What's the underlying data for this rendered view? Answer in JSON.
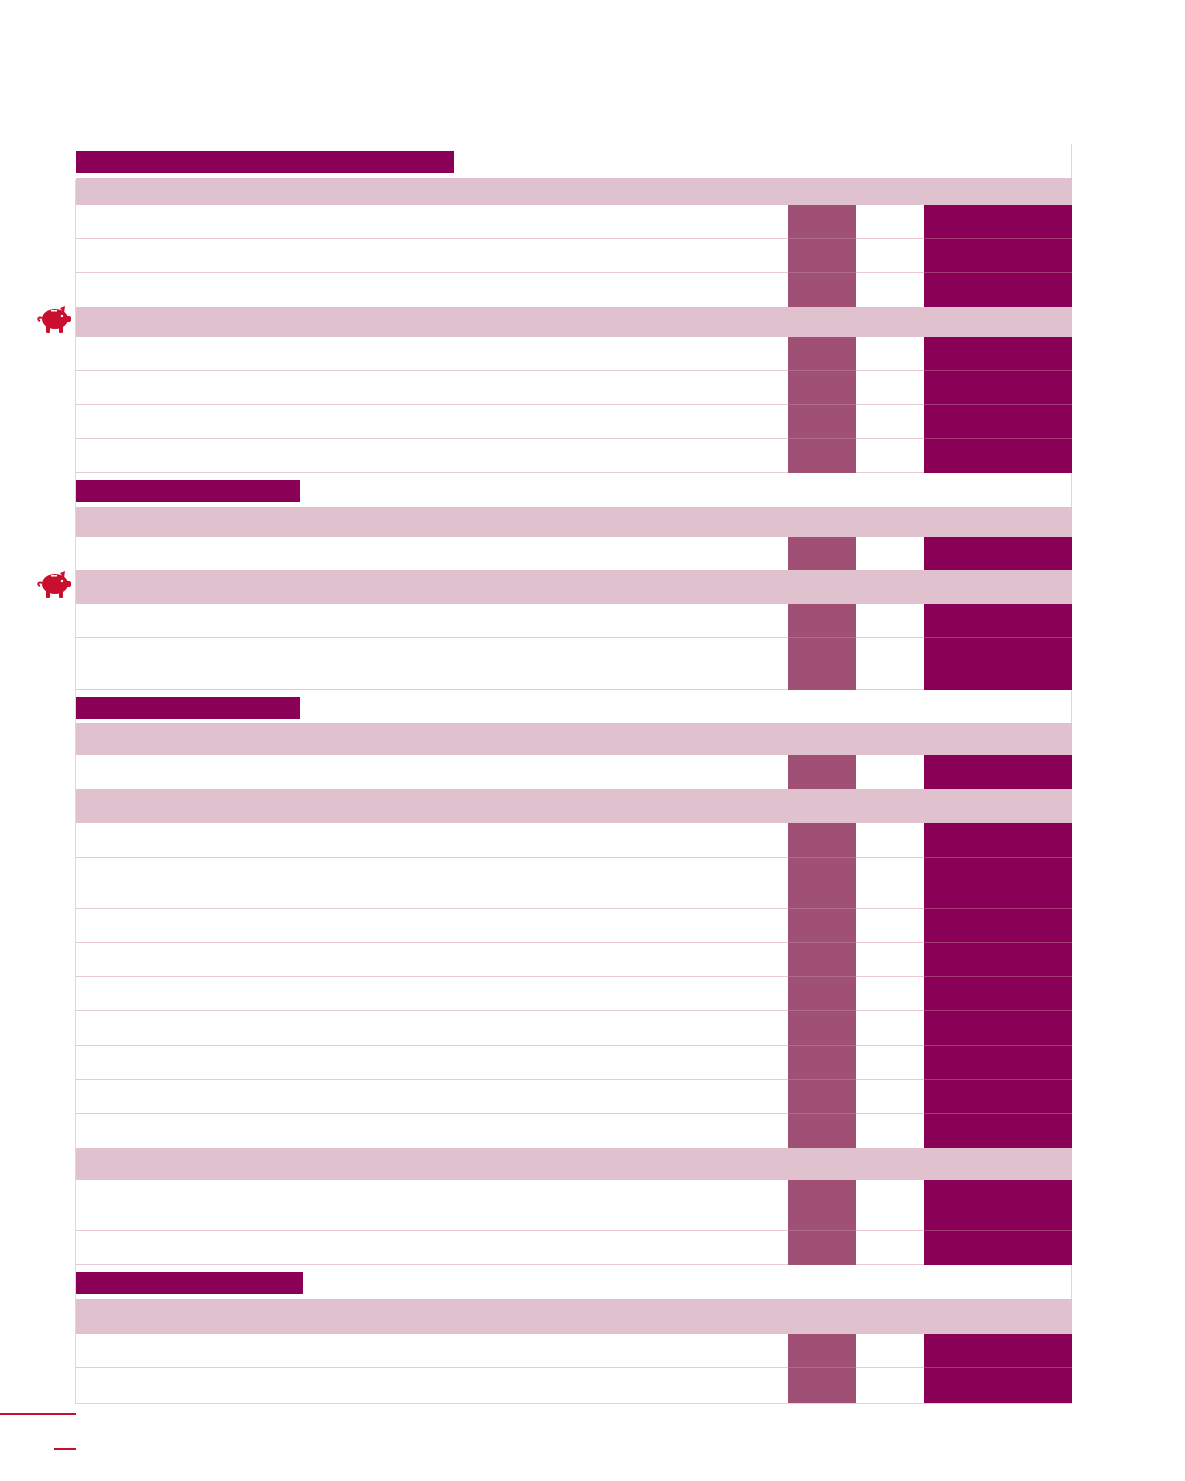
{
  "colors": {
    "title_bar": "#8a0057",
    "section_band": "#e0c2cf",
    "column_mid": "#a04f75",
    "column_dark": "#8a0057",
    "row_rule": "#e9c9d6",
    "piggy_icon": "#c8102e",
    "footer_rule": "#c8102e"
  },
  "icons": {
    "section_marker": "piggy-bank-icon"
  },
  "sections": [
    {
      "title": "",
      "bands": [
        {
          "label": "",
          "rows": 3
        },
        {
          "label": "",
          "rows": 4,
          "icon": "piggy-bank-icon"
        }
      ]
    },
    {
      "title": "",
      "bands": [
        {
          "label": "",
          "rows": 1
        },
        {
          "label": "",
          "rows": 2,
          "icon": "piggy-bank-icon"
        }
      ]
    },
    {
      "title": "",
      "bands": [
        {
          "label": "",
          "rows": 1
        },
        {
          "label": "",
          "rows": 9
        },
        {
          "label": "",
          "rows": 2
        }
      ]
    },
    {
      "title": "",
      "bands": [
        {
          "label": "",
          "rows": 2
        }
      ]
    }
  ]
}
